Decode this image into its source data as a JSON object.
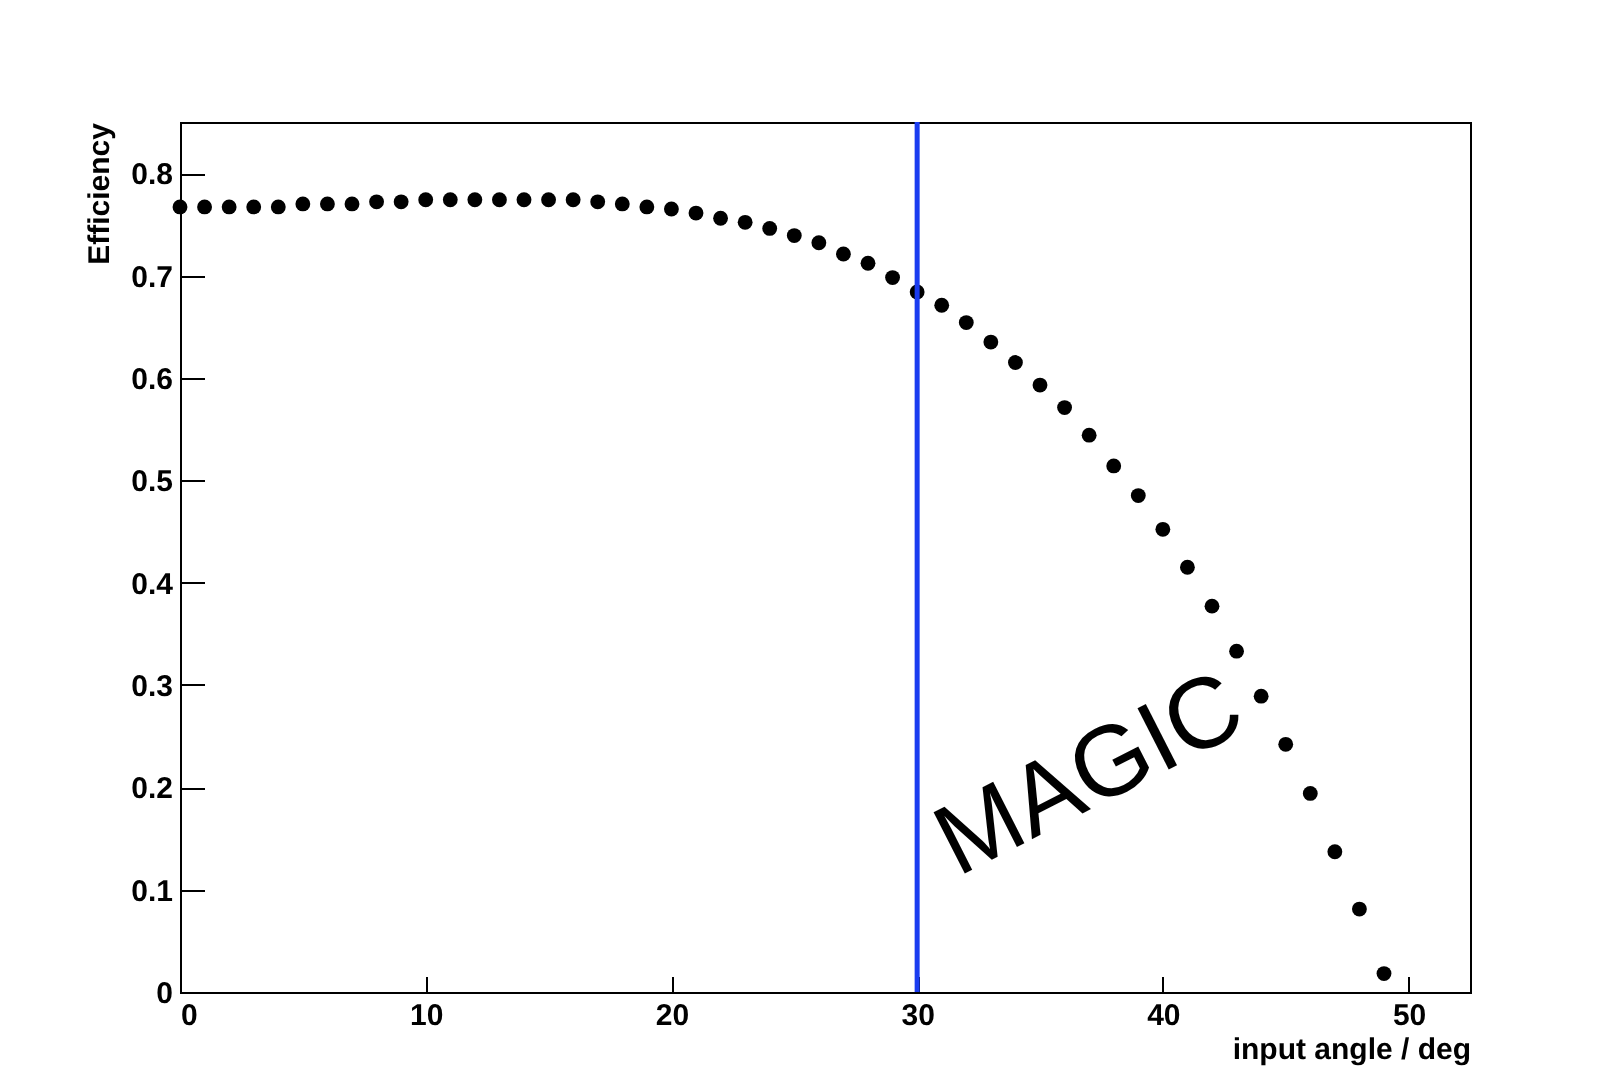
{
  "chart_data": {
    "type": "scatter",
    "xlabel": "input angle / deg",
    "ylabel": "Efficiency",
    "x": [
      0,
      1,
      2,
      3,
      4,
      5,
      6,
      7,
      8,
      9,
      10,
      11,
      12,
      13,
      14,
      15,
      16,
      17,
      18,
      19,
      20,
      21,
      22,
      23,
      24,
      25,
      26,
      27,
      28,
      29,
      30,
      31,
      32,
      33,
      34,
      35,
      36,
      37,
      38,
      39,
      40,
      41,
      42,
      43,
      44,
      45,
      46,
      47,
      48,
      49
    ],
    "series": [
      {
        "color": "#000000",
        "values": [
          0.767,
          0.767,
          0.767,
          0.767,
          0.767,
          0.77,
          0.77,
          0.77,
          0.772,
          0.772,
          0.774,
          0.774,
          0.774,
          0.774,
          0.774,
          0.774,
          0.774,
          0.772,
          0.77,
          0.767,
          0.765,
          0.761,
          0.756,
          0.752,
          0.746,
          0.739,
          0.732,
          0.721,
          0.712,
          0.698,
          0.684,
          0.671,
          0.654,
          0.635,
          0.615,
          0.593,
          0.571,
          0.544,
          0.514,
          0.485,
          0.452,
          0.415,
          0.377,
          0.333,
          0.289,
          0.242,
          0.194,
          0.137,
          0.081,
          0.018
        ]
      }
    ],
    "marker": "circle",
    "xlim": [
      0,
      52.5
    ],
    "xticks": [
      0,
      10,
      20,
      30,
      40,
      50
    ],
    "ylim": [
      0,
      0.85
    ],
    "yticks": [
      0,
      0.1,
      0.2,
      0.3,
      0.4,
      0.5,
      0.6,
      0.7,
      0.8
    ],
    "ref_lines": [
      {
        "axis": "x",
        "value": 30,
        "color": "#1a3cf0"
      }
    ],
    "annotations": [
      "MAGIC"
    ]
  }
}
